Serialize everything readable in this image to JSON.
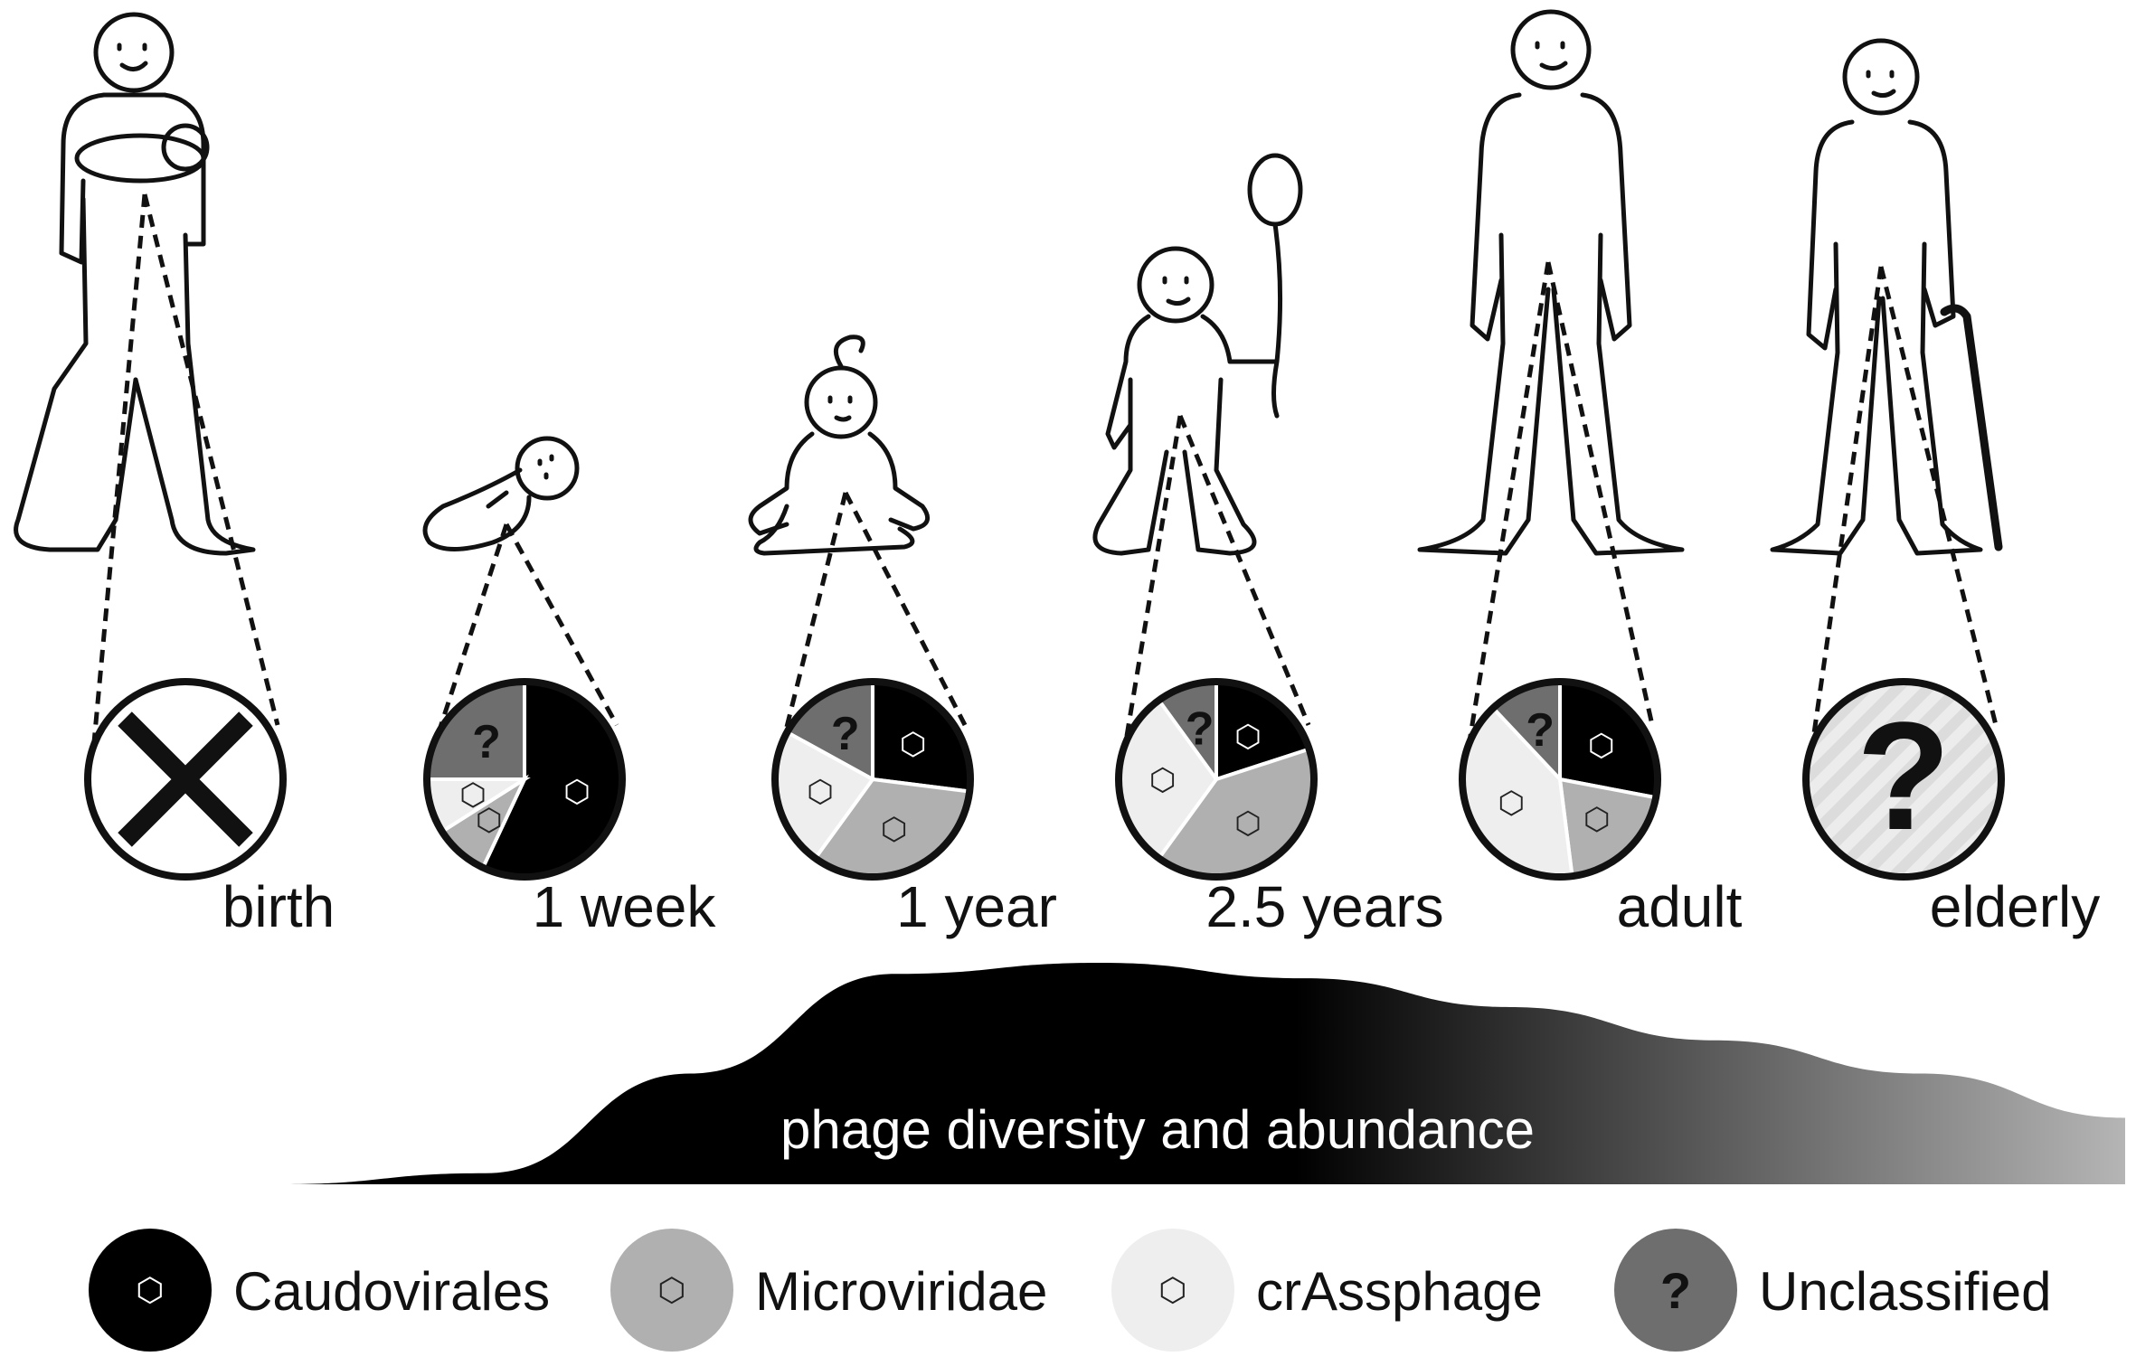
{
  "stages": [
    {
      "id": "birth",
      "label": "birth",
      "pie": null,
      "no_phage": true
    },
    {
      "id": "week",
      "label": "1 week",
      "pie": [
        {
          "key": "unclassified",
          "fraction": 0.25
        },
        {
          "key": "caudovirales",
          "fraction": 0.57
        },
        {
          "key": "microviridae",
          "fraction": 0.09
        },
        {
          "key": "crassphage",
          "fraction": 0.09
        }
      ]
    },
    {
      "id": "year",
      "label": "1 year",
      "pie": [
        {
          "key": "unclassified",
          "fraction": 0.17
        },
        {
          "key": "caudovirales",
          "fraction": 0.27
        },
        {
          "key": "microviridae",
          "fraction": 0.33
        },
        {
          "key": "crassphage",
          "fraction": 0.23
        }
      ]
    },
    {
      "id": "twohalf",
      "label": "2.5 years",
      "pie": [
        {
          "key": "unclassified",
          "fraction": 0.1
        },
        {
          "key": "caudovirales",
          "fraction": 0.2
        },
        {
          "key": "microviridae",
          "fraction": 0.4
        },
        {
          "key": "crassphage",
          "fraction": 0.3
        }
      ]
    },
    {
      "id": "adult",
      "label": "adult",
      "pie": [
        {
          "key": "unclassified",
          "fraction": 0.12
        },
        {
          "key": "caudovirales",
          "fraction": 0.28
        },
        {
          "key": "microviridae",
          "fraction": 0.2
        },
        {
          "key": "crassphage",
          "fraction": 0.4
        }
      ]
    },
    {
      "id": "elderly",
      "label": "elderly",
      "pie": null,
      "unknown": true
    }
  ],
  "categories": {
    "caudovirales": {
      "label": "Caudovirales",
      "color": "#000000"
    },
    "microviridae": {
      "label": "Microviridae",
      "color": "#b0b0b0"
    },
    "crassphage": {
      "label": "crAssphage",
      "color": "#eeeeee"
    },
    "unclassified": {
      "label": "Unclassified",
      "color": "#6e6e6e"
    }
  },
  "unknown_mark": "?",
  "legend_order": [
    "caudovirales",
    "microviridae",
    "crassphage",
    "unclassified"
  ],
  "abundance_bar": {
    "label": "phage diversity and abundance",
    "profile": [
      0,
      0.05,
      0.5,
      0.95,
      1.0,
      0.93,
      0.8,
      0.65,
      0.5,
      0.3
    ]
  }
}
